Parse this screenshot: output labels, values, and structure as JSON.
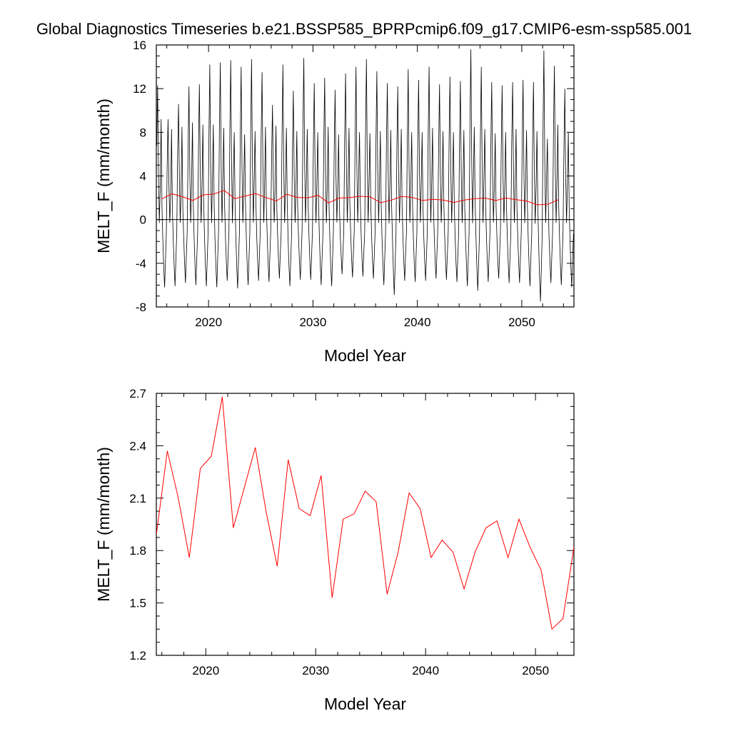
{
  "figure": {
    "title": "Global Diagnostics Timeseries b.e21.BSSP585_BPRPcmip6.f09_g17.CMIP6-esm-ssp585.001"
  },
  "chart_data": [
    {
      "type": "line",
      "xlabel": "Model Year",
      "ylabel": "MELT_F (mm/month)",
      "xlim": [
        2015,
        2055
      ],
      "ylim": [
        -8,
        16
      ],
      "xticks": [
        "2020",
        "2030",
        "2040",
        "2050"
      ],
      "xtick_values": [
        2020,
        2030,
        2040,
        2050
      ],
      "yticks": [
        "-8",
        "-4",
        "0",
        "4",
        "8",
        "12",
        "16"
      ],
      "ytick_values": [
        -8,
        -4,
        0,
        4,
        8,
        12,
        16
      ],
      "reference_line": 0,
      "series": [
        {
          "kind": "monthly",
          "color": "#000000",
          "x_start": 2015.04,
          "x_step": 0.0833333,
          "yearly_peaks": [
            12.3,
            9.2,
            10.6,
            12.2,
            12.4,
            14.2,
            14.4,
            14.6,
            14.0,
            14.7,
            13.5,
            10.5,
            14.2,
            11.8,
            14.8,
            12.5,
            13.0,
            11.9,
            13.4,
            14.0,
            14.7,
            13.6,
            12.5,
            12.2,
            13.8,
            12.8,
            14.0,
            12.4,
            13.1,
            12.7,
            15.6,
            14.0,
            12.6,
            12.3,
            12.6,
            12.8,
            12.6,
            15.5,
            14.1,
            12.0
          ],
          "yearly_troughs": [
            -6.2,
            -6.1,
            -5.8,
            -6.0,
            -6.1,
            -6.2,
            -5.6,
            -6.3,
            -6.0,
            -5.6,
            -5.7,
            -5.4,
            -6.1,
            -5.5,
            -5.5,
            -6.0,
            -6.1,
            -5.0,
            -5.3,
            -5.2,
            -5.4,
            -6.0,
            -6.9,
            -5.6,
            -5.7,
            -5.6,
            -5.4,
            -5.5,
            -5.7,
            -6.1,
            -6.5,
            -5.7,
            -5.4,
            -5.8,
            -5.8,
            -6.1,
            -7.5,
            -5.8,
            -6.0,
            -6.2
          ],
          "secondary_peaks": [
            9.2,
            8.3,
            8.5,
            8.9,
            8.7,
            8.7,
            8.4,
            8.0,
            7.8,
            8.1,
            8.5,
            8.6,
            8.4,
            8.1,
            8.3,
            8.0,
            8.5,
            7.8,
            8.4,
            8.0,
            7.9,
            8.1,
            8.2,
            8.3,
            8.0,
            8.0,
            8.4,
            8.1,
            8.0,
            8.2,
            8.5,
            8.3,
            7.9,
            8.0,
            8.3,
            8.2,
            8.1,
            7.4,
            8.7,
            8.0
          ]
        },
        {
          "kind": "annual-mean",
          "color": "#ff0000",
          "x": [
            2015.5,
            2016.5,
            2017.5,
            2018.5,
            2019.5,
            2020.5,
            2021.5,
            2022.5,
            2023.5,
            2024.5,
            2025.5,
            2026.5,
            2027.5,
            2028.5,
            2029.5,
            2030.5,
            2031.5,
            2032.5,
            2033.5,
            2034.5,
            2035.5,
            2036.5,
            2037.5,
            2038.5,
            2039.5,
            2040.5,
            2041.5,
            2042.5,
            2043.5,
            2044.5,
            2045.5,
            2046.5,
            2047.5,
            2048.5,
            2049.5,
            2050.5,
            2051.5,
            2052.5,
            2053.5
          ],
          "y": [
            1.89,
            2.37,
            2.1,
            1.76,
            2.27,
            2.34,
            2.68,
            1.93,
            2.16,
            2.39,
            2.02,
            1.71,
            2.32,
            2.04,
            2.0,
            2.23,
            1.53,
            1.98,
            2.01,
            2.14,
            2.08,
            1.55,
            1.79,
            2.13,
            2.04,
            1.76,
            1.86,
            1.79,
            1.58,
            1.79,
            1.93,
            1.97,
            1.76,
            1.98,
            1.82,
            1.69,
            1.35,
            1.41,
            1.82
          ]
        }
      ]
    },
    {
      "type": "line",
      "xlabel": "Model Year",
      "ylabel": "MELT_F (mm/month)",
      "xlim": [
        2015.5,
        2053.5
      ],
      "ylim": [
        1.2,
        2.7
      ],
      "xticks": [
        "2020",
        "2030",
        "2040",
        "2050"
      ],
      "xtick_values": [
        2020,
        2030,
        2040,
        2050
      ],
      "yticks": [
        "1.2",
        "1.5",
        "1.8",
        "2.1",
        "2.4",
        "2.7"
      ],
      "ytick_values": [
        1.2,
        1.5,
        1.8,
        2.1,
        2.4,
        2.7
      ],
      "series": [
        {
          "kind": "annual-mean",
          "color": "#ff0000",
          "x": [
            2015.5,
            2016.5,
            2017.5,
            2018.5,
            2019.5,
            2020.5,
            2021.5,
            2022.5,
            2023.5,
            2024.5,
            2025.5,
            2026.5,
            2027.5,
            2028.5,
            2029.5,
            2030.5,
            2031.5,
            2032.5,
            2033.5,
            2034.5,
            2035.5,
            2036.5,
            2037.5,
            2038.5,
            2039.5,
            2040.5,
            2041.5,
            2042.5,
            2043.5,
            2044.5,
            2045.5,
            2046.5,
            2047.5,
            2048.5,
            2049.5,
            2050.5,
            2051.5,
            2052.5,
            2053.5
          ],
          "y": [
            1.89,
            2.37,
            2.1,
            1.76,
            2.27,
            2.34,
            2.68,
            1.93,
            2.16,
            2.39,
            2.02,
            1.71,
            2.32,
            2.04,
            2.0,
            2.23,
            1.53,
            1.98,
            2.01,
            2.14,
            2.08,
            1.55,
            1.79,
            2.13,
            2.04,
            1.76,
            1.86,
            1.79,
            1.58,
            1.79,
            1.93,
            1.97,
            1.76,
            1.98,
            1.82,
            1.69,
            1.35,
            1.41,
            1.82
          ]
        }
      ]
    }
  ]
}
